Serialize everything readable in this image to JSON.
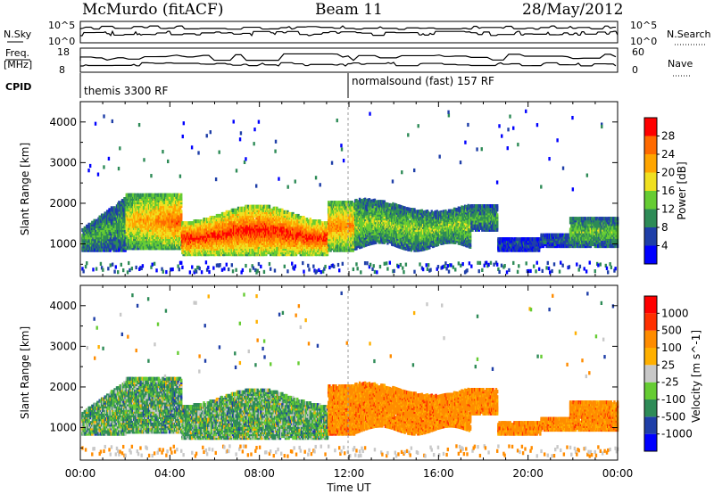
{
  "header": {
    "station": "McMurdo (fitACF)",
    "beam": "Beam 11",
    "date": "28/May/2012"
  },
  "noise_panel": {
    "left_label": "N.Sky",
    "right_label": "N.Search",
    "left_ticks": [
      "10^5",
      "10^0"
    ],
    "right_ticks": [
      "10^5",
      "10^0"
    ]
  },
  "freq_panel": {
    "left_label_line1": "Freq.",
    "left_label_line2": "[MHz]",
    "right_label": "Nave",
    "left_ticks": [
      "18",
      "8"
    ],
    "right_ticks": [
      "60",
      "0"
    ]
  },
  "cpid_panel": {
    "label": "CPID",
    "segments": [
      {
        "label": "themis 3300 RF",
        "start_hour": 0
      },
      {
        "label": "normalsound (fast) 157 RF",
        "start_hour": 12
      }
    ]
  },
  "chart_data": [
    {
      "type": "heatmap",
      "title": "",
      "ylabel": "Slant Range [km]",
      "xlabel": "",
      "ylim": [
        200,
        4500
      ],
      "yticks": [
        1000,
        2000,
        3000,
        4000
      ],
      "xlim_hours": [
        0,
        24
      ],
      "colorbar": {
        "label": "Power [dB]",
        "ticks": [
          "28",
          "24",
          "20",
          "16",
          "12",
          "8",
          "4"
        ],
        "range": [
          0,
          32
        ],
        "colors": [
          "#0000ff",
          "#1f3fa8",
          "#2e8b57",
          "#66cc33",
          "#f0e020",
          "#ffa500",
          "#ff6a00",
          "#ff0000"
        ]
      }
    },
    {
      "type": "heatmap",
      "title": "",
      "ylabel": "Slant Range [km]",
      "xlabel": "Time UT",
      "ylim": [
        200,
        4500
      ],
      "yticks": [
        1000,
        2000,
        3000,
        4000
      ],
      "xlim_hours": [
        0,
        24
      ],
      "colorbar": {
        "label": "Velocity [m s^-1]",
        "ticks": [
          "1000",
          "500",
          "100",
          "25",
          "-25",
          "-100",
          "-500",
          "-1000"
        ],
        "colors": [
          "#0000ff",
          "#1f3fa8",
          "#2e8b57",
          "#66cc33",
          "#c8c8c8",
          "#ffb000",
          "#ff8c00",
          "#ff3000",
          "#ff0000"
        ]
      }
    }
  ],
  "time_axis": {
    "ticks": [
      "00:00",
      "04:00",
      "08:00",
      "12:00",
      "16:00",
      "20:00",
      "00:00"
    ],
    "label": "Time UT"
  }
}
